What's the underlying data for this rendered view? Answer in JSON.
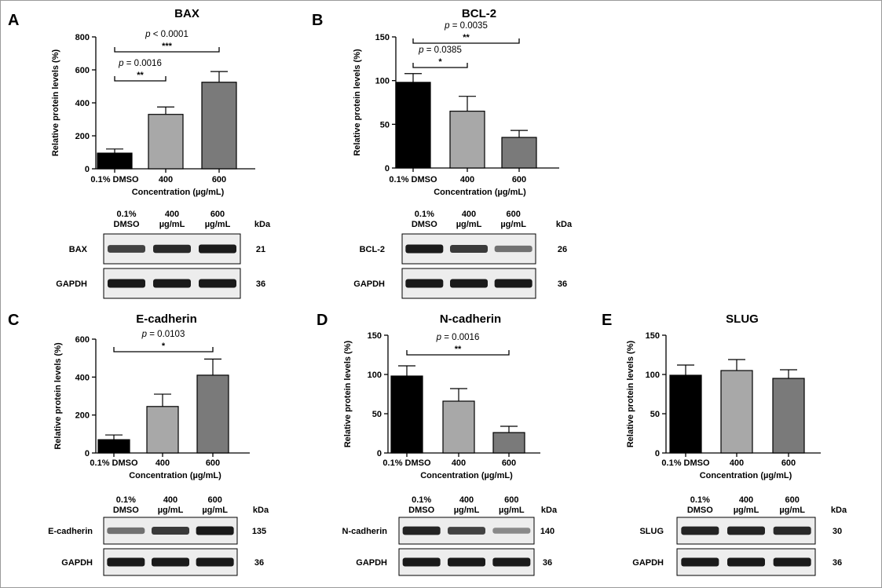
{
  "colors": {
    "dmso": "#000000",
    "c400": "#a8a8a8",
    "c600": "#7a7a7a",
    "band": "#1a1a1a"
  },
  "chart_data": [
    {
      "id": "A",
      "type": "bar",
      "panel_letter": "A",
      "title": "BAX",
      "ylabel": "Relative protein levels (%)",
      "xlabel": "Concentration (µg/mL)",
      "categories": [
        "0.1% DMSO",
        "400",
        "600"
      ],
      "values": [
        95,
        330,
        525
      ],
      "errors": [
        25,
        45,
        65
      ],
      "ylim": [
        0,
        800
      ],
      "yticks": [
        "0",
        "200",
        "400",
        "600",
        "800"
      ],
      "significance": [
        {
          "from": 0,
          "to": 1,
          "p_prefix": "p",
          "p_text": " = 0.0016",
          "stars": "**"
        },
        {
          "from": 0,
          "to": 2,
          "p_prefix": "p",
          "p_text": " < 0.0001",
          "stars": "***"
        }
      ],
      "blot": {
        "headers": [
          [
            "0.1%",
            "DMSO"
          ],
          [
            "400",
            "µg/mL"
          ],
          [
            "600",
            "µg/mL"
          ]
        ],
        "unit": "kDa",
        "rows": [
          {
            "label": "BAX",
            "kda": "21",
            "intensity": [
              0.75,
              0.9,
              1.0
            ]
          },
          {
            "label": "GAPDH",
            "kda": "36",
            "intensity": [
              1.0,
              1.0,
              1.0
            ]
          }
        ]
      }
    },
    {
      "id": "B",
      "type": "bar",
      "panel_letter": "B",
      "title": "BCL-2",
      "ylabel": "Relative protein levels (%)",
      "xlabel": "Concentration (µg/mL)",
      "categories": [
        "0.1% DMSO",
        "400",
        "600"
      ],
      "values": [
        98,
        65,
        35
      ],
      "errors": [
        10,
        17,
        8
      ],
      "ylim": [
        0,
        150
      ],
      "yticks": [
        "0",
        "50",
        "100",
        "150"
      ],
      "significance": [
        {
          "from": 0,
          "to": 1,
          "p_prefix": "p",
          "p_text": " = 0.0385",
          "stars": "*"
        },
        {
          "from": 0,
          "to": 2,
          "p_prefix": "p",
          "p_text": " = 0.0035",
          "stars": "**"
        }
      ],
      "blot": {
        "headers": [
          [
            "0.1%",
            "DMSO"
          ],
          [
            "400",
            "µg/mL"
          ],
          [
            "600",
            "µg/mL"
          ]
        ],
        "unit": "kDa",
        "rows": [
          {
            "label": "BCL-2",
            "kda": "26",
            "intensity": [
              1.0,
              0.8,
              0.45
            ]
          },
          {
            "label": "GAPDH",
            "kda": "36",
            "intensity": [
              1.0,
              1.0,
              1.0
            ]
          }
        ]
      }
    },
    {
      "id": "C",
      "type": "bar",
      "panel_letter": "C",
      "title": "E-cadherin",
      "ylabel": "Relative protein levels (%)",
      "xlabel": "Concentration (µg/mL)",
      "categories": [
        "0.1% DMSO",
        "400",
        "600"
      ],
      "values": [
        70,
        245,
        410
      ],
      "errors": [
        25,
        65,
        85
      ],
      "ylim": [
        0,
        600
      ],
      "yticks": [
        "0",
        "200",
        "400",
        "600"
      ],
      "significance": [
        {
          "from": 0,
          "to": 2,
          "p_prefix": "p",
          "p_text": " = 0.0103",
          "stars": "*"
        }
      ],
      "blot": {
        "headers": [
          [
            "0.1%",
            "DMSO"
          ],
          [
            "400",
            "µg/mL"
          ],
          [
            "600",
            "µg/mL"
          ]
        ],
        "unit": "kDa",
        "rows": [
          {
            "label": "E-cadherin",
            "kda": "135",
            "intensity": [
              0.45,
              0.8,
              1.0
            ]
          },
          {
            "label": "GAPDH",
            "kda": "36",
            "intensity": [
              1.0,
              1.0,
              1.0
            ]
          }
        ]
      }
    },
    {
      "id": "D",
      "type": "bar",
      "panel_letter": "D",
      "title": "N-cadherin",
      "ylabel": "Relative protein levels (%)",
      "xlabel": "Concentration (µg/mL)",
      "categories": [
        "0.1% DMSO",
        "400",
        "600"
      ],
      "values": [
        98,
        66,
        26
      ],
      "errors": [
        13,
        16,
        8
      ],
      "ylim": [
        0,
        150
      ],
      "yticks": [
        "0",
        "50",
        "100",
        "150"
      ],
      "significance": [
        {
          "from": 0,
          "to": 2,
          "p_prefix": "p",
          "p_text": " = 0.0016",
          "stars": "**"
        }
      ],
      "blot": {
        "headers": [
          [
            "0.1%",
            "DMSO"
          ],
          [
            "400",
            "µg/mL"
          ],
          [
            "600",
            "µg/mL"
          ]
        ],
        "unit": "kDa",
        "rows": [
          {
            "label": "N-cadherin",
            "kda": "140",
            "intensity": [
              0.95,
              0.75,
              0.3
            ]
          },
          {
            "label": "GAPDH",
            "kda": "36",
            "intensity": [
              1.0,
              1.0,
              1.0
            ]
          }
        ]
      }
    },
    {
      "id": "E",
      "type": "bar",
      "panel_letter": "E",
      "title": "SLUG",
      "ylabel": "Relative protein levels (%)",
      "xlabel": "Concentration (µg/mL)",
      "categories": [
        "0.1% DMSO",
        "400",
        "600"
      ],
      "values": [
        99,
        105,
        95
      ],
      "errors": [
        13,
        14,
        11
      ],
      "ylim": [
        0,
        150
      ],
      "yticks": [
        "0",
        "50",
        "100",
        "150"
      ],
      "significance": [],
      "blot": {
        "headers": [
          [
            "0.1%",
            "DMSO"
          ],
          [
            "400",
            "µg/mL"
          ],
          [
            "600",
            "µg/mL"
          ]
        ],
        "unit": "kDa",
        "rows": [
          {
            "label": "SLUG",
            "kda": "30",
            "intensity": [
              0.95,
              0.95,
              0.9
            ]
          },
          {
            "label": "GAPDH",
            "kda": "36",
            "intensity": [
              1.0,
              1.0,
              1.0
            ]
          }
        ]
      }
    }
  ]
}
